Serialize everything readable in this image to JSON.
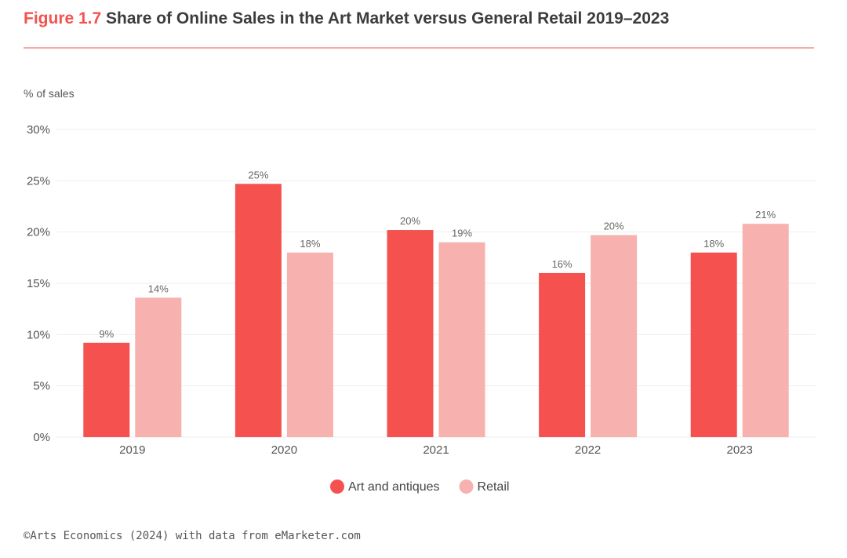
{
  "header": {
    "figure_label": "Figure 1.7",
    "title": "Share of Online Sales in the Art Market versus General Retail 2019–2023"
  },
  "footer": {
    "source": "©Arts Economics (2024) with data from eMarketer.com"
  },
  "colors": {
    "accent": "#f4514f",
    "art": "#f4514f",
    "retail": "#f7b1ae",
    "grid": "#eeeeee",
    "axis_text": "#555555"
  },
  "chart_data": {
    "type": "bar",
    "title": "Share of Online Sales in the Art Market versus General Retail 2019–2023",
    "xlabel": "",
    "ylabel": "% of sales",
    "ylim": [
      0,
      30
    ],
    "yticks": [
      0,
      5,
      10,
      15,
      20,
      25,
      30
    ],
    "ytick_labels": [
      "0%",
      "5%",
      "10%",
      "15%",
      "20%",
      "25%",
      "30%"
    ],
    "grid": true,
    "legend_position": "bottom-center",
    "categories": [
      "2019",
      "2020",
      "2021",
      "2022",
      "2023"
    ],
    "series": [
      {
        "name": "Art and antiques",
        "values": [
          9.2,
          24.7,
          20.2,
          16.0,
          18.0
        ],
        "labels": [
          "9%",
          "25%",
          "20%",
          "16%",
          "18%"
        ]
      },
      {
        "name": "Retail",
        "values": [
          13.6,
          18.0,
          19.0,
          19.7,
          20.8
        ],
        "labels": [
          "14%",
          "18%",
          "19%",
          "20%",
          "21%"
        ]
      }
    ]
  }
}
